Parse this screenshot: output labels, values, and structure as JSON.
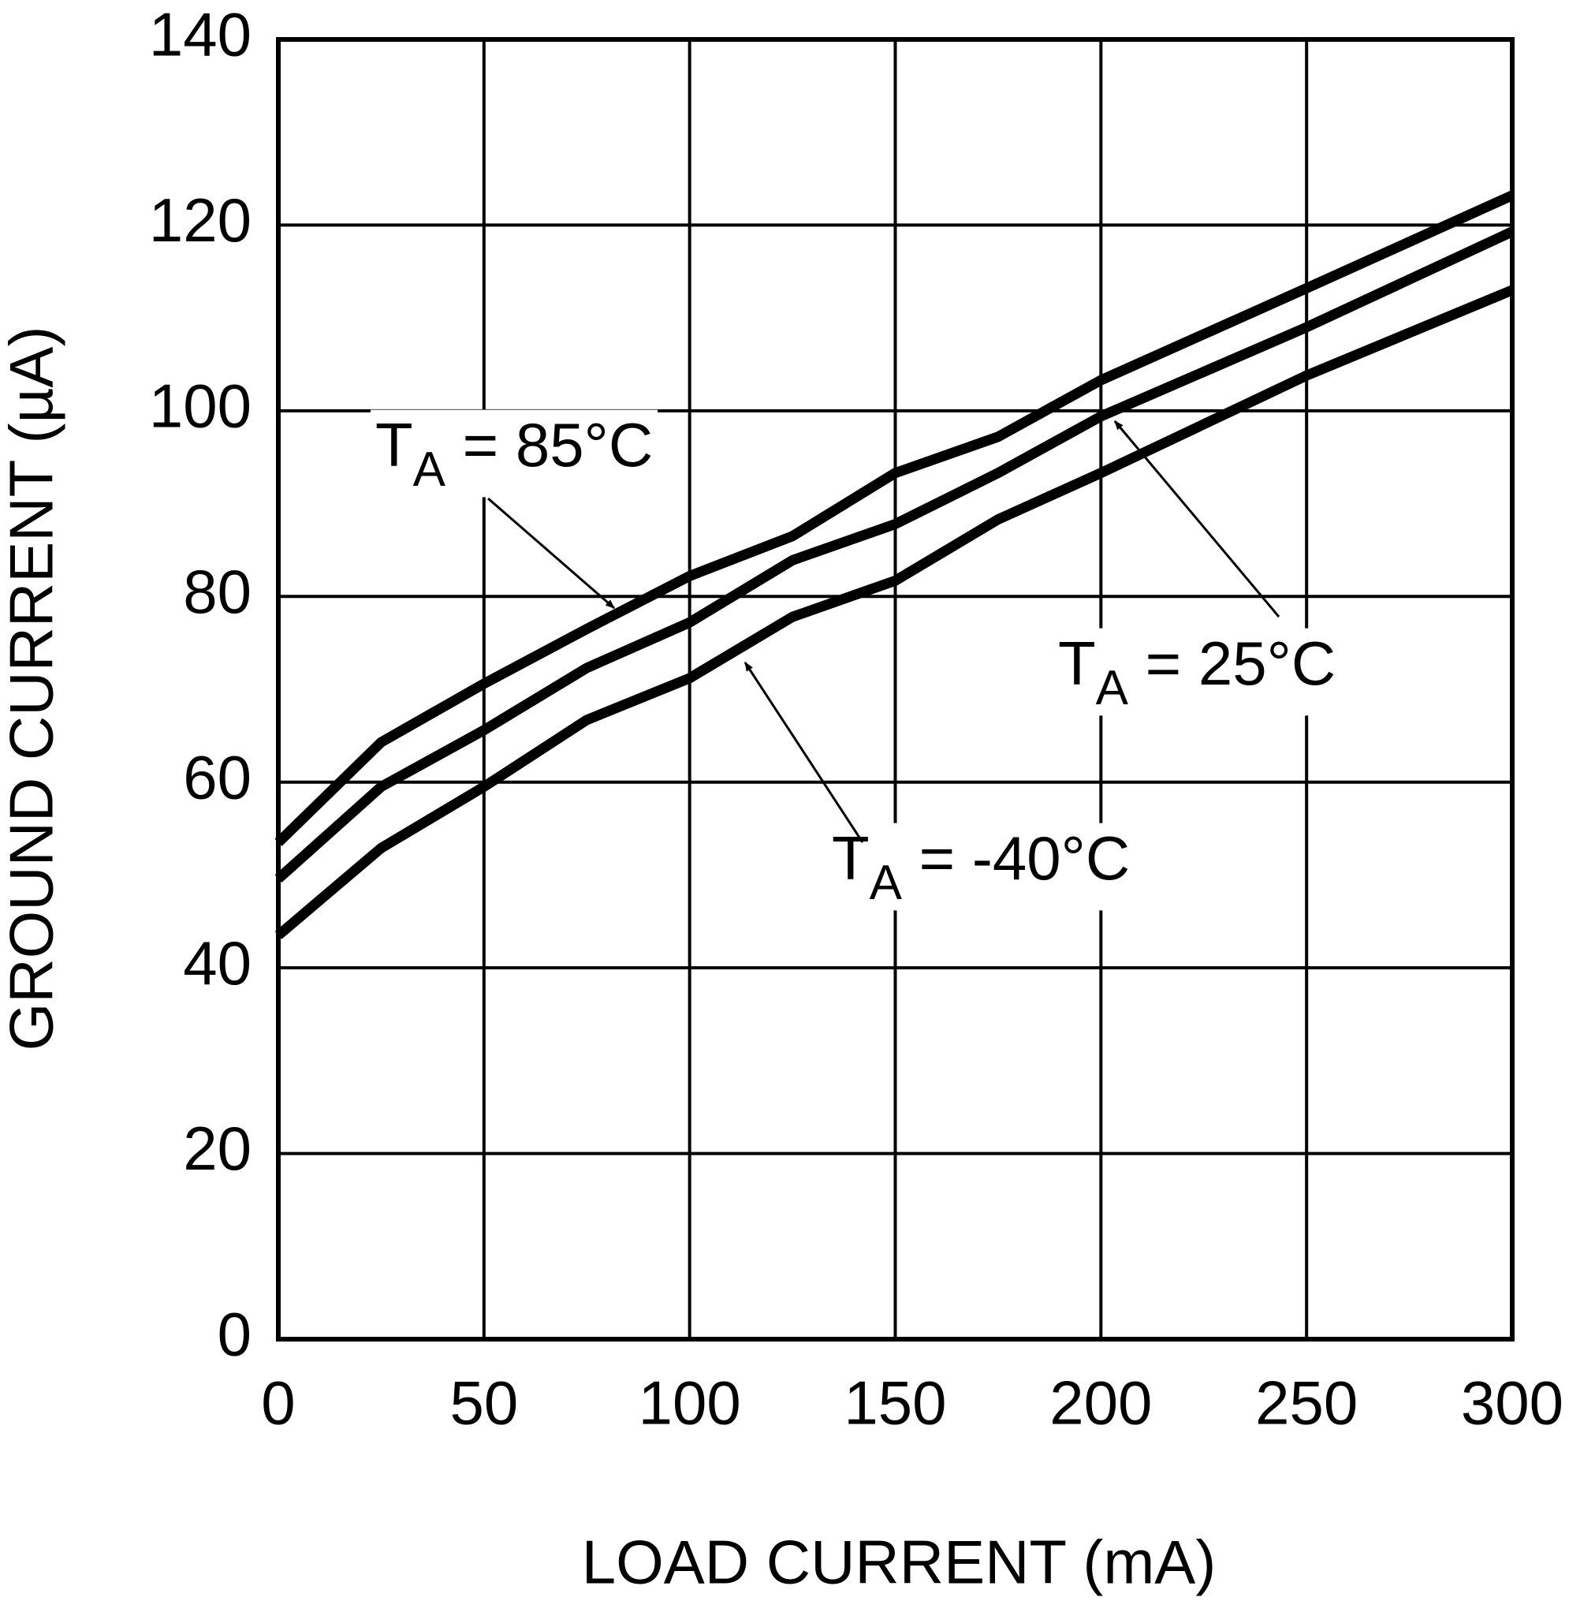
{
  "chart_data": {
    "type": "line",
    "x_label": "LOAD CURRENT (mA)",
    "y_label": "GROUND CURRENT (µA)",
    "x": [
      0,
      25,
      50,
      75,
      100,
      125,
      150,
      175,
      200,
      250,
      300
    ],
    "series": [
      {
        "label": {
          "main": "T",
          "sub": "A",
          "tail": " = 85°C"
        },
        "color": "#000000",
        "values": [
          53.5,
          64.3,
          70.6,
          76.5,
          82.2,
          86.5,
          93.3,
          97.2,
          103.3,
          113.2,
          123.2
        ]
      },
      {
        "label": {
          "main": "T",
          "sub": "A",
          "tail": " = 25°C"
        },
        "color": "#000000",
        "values": [
          49.6,
          59.5,
          65.6,
          72.3,
          77.2,
          83.9,
          87.8,
          93.3,
          99.4,
          109,
          119.3
        ]
      },
      {
        "label": {
          "main": "T",
          "sub": "A",
          "tail": " =  -40°C"
        },
        "color": "#000000",
        "values": [
          43.5,
          52.9,
          59.5,
          66.7,
          71.2,
          77.8,
          81.7,
          88.3,
          93.3,
          103.8,
          113
        ]
      }
    ],
    "xlim": [
      0,
      300
    ],
    "xticks": [
      0,
      50,
      100,
      150,
      200,
      250,
      300
    ],
    "ylim": [
      0,
      140
    ],
    "yticks": [
      0,
      20,
      40,
      60,
      80,
      100,
      120,
      140
    ],
    "grid": true
  }
}
